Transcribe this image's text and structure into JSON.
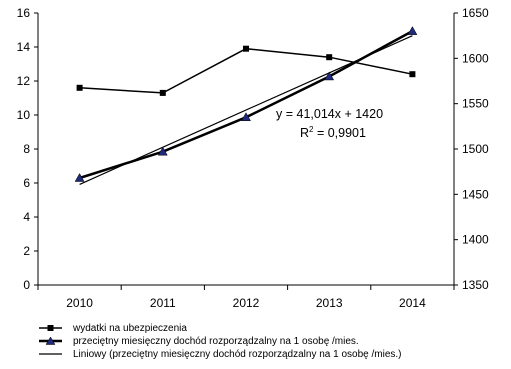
{
  "chart_data": {
    "type": "line",
    "x": [
      "2010",
      "2011",
      "2012",
      "2013",
      "2014"
    ],
    "y_left_ticks": [
      "0",
      "2",
      "4",
      "6",
      "8",
      "10",
      "12",
      "14",
      "16"
    ],
    "y_right_ticks": [
      "1350",
      "1400",
      "1450",
      "1500",
      "1550",
      "1600",
      "1650"
    ],
    "ylim_left": [
      0,
      16
    ],
    "ylim_right": [
      1350,
      1650
    ],
    "series": [
      {
        "name": "wydatki na ubezpieczenia",
        "axis": "left",
        "marker": "square",
        "color": "#000000",
        "values": [
          11.6,
          11.3,
          13.9,
          13.4,
          12.4
        ]
      },
      {
        "name": "przeciętny miesięczny dochód rozporządzalny na 1 osobę /mies.",
        "axis": "right",
        "marker": "triangle",
        "color": "#000000",
        "values": [
          1468,
          1497,
          1535,
          1580,
          1630
        ]
      },
      {
        "name": "Liniowy (przeciętny miesięczny dochód rozporządzalny na 1 osobę /mies.)",
        "axis": "right",
        "marker": "none",
        "color": "#000000",
        "trendline": true,
        "values": [
          1461,
          1502,
          1543,
          1584,
          1625
        ]
      }
    ],
    "annotations": {
      "equation": "y = 41,014x + 1420",
      "r2_prefix": "R",
      "r2_sup": "2",
      "r2_value": " = 0,9901"
    },
    "grid": false,
    "legend_position": "bottom-left"
  }
}
